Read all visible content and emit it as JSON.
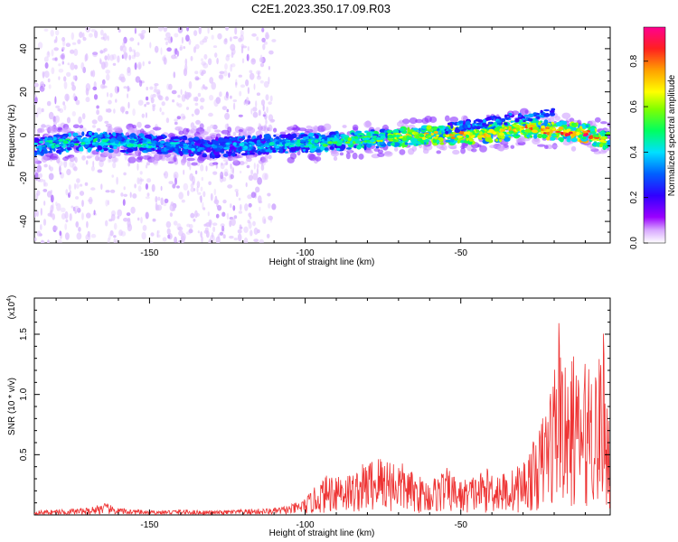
{
  "figure_title": "C2E1.2023.350.17.09.R03",
  "chart_data": [
    {
      "type": "heatmap",
      "xlabel": "Height of straight line (km)",
      "ylabel": "Frequency (Hz)",
      "xlim": [
        -187,
        -2
      ],
      "ylim": [
        -50,
        50
      ],
      "xticks": [
        -150,
        -100,
        -50
      ],
      "xtick_labels": [
        "-150",
        "-100",
        "-50"
      ],
      "yticks": [
        -40,
        -20,
        0,
        20,
        40
      ],
      "ytick_labels": [
        "-40",
        "-20",
        "0",
        "20",
        "40"
      ],
      "colorbar": {
        "label": "Normalized spectral amplitude",
        "range": [
          0,
          0.95
        ],
        "ticks": [
          0.0,
          0.2,
          0.4,
          0.6,
          0.8
        ],
        "tick_labels": [
          "0.0",
          "0.2",
          "0.4",
          "0.6",
          "0.8"
        ],
        "colormap": [
          "#ffffff",
          "#9a00ff",
          "#3000ff",
          "#0060ff",
          "#00e0ff",
          "#00ff60",
          "#80ff00",
          "#ffff00",
          "#ffa000",
          "#ff2020",
          "#ff0090"
        ]
      },
      "ridge": {
        "x": [
          -187,
          -170,
          -150,
          -140,
          -130,
          -120,
          -110,
          -100,
          -90,
          -80,
          -70,
          -60,
          -50,
          -40,
          -30,
          -20,
          -10,
          -2
        ],
        "frequency": [
          -5,
          -3,
          -4,
          -5,
          -6,
          -5,
          -4,
          -4,
          -3,
          -2,
          -1,
          0,
          0,
          1,
          3,
          2,
          1,
          -3
        ],
        "peak_amplitude": [
          0.45,
          0.5,
          0.45,
          0.4,
          0.35,
          0.4,
          0.45,
          0.5,
          0.55,
          0.6,
          0.7,
          0.8,
          0.8,
          0.75,
          0.85,
          0.9,
          0.95,
          0.7
        ]
      },
      "scatter_region_x": [
        -187,
        -110
      ]
    },
    {
      "type": "line",
      "xlabel": "Height of straight line (km)",
      "ylabel": "SNR (10 * v/v)",
      "y_scale_label": "(x10",
      "y_scale_exp": "4",
      "y_scale_close": ")",
      "xlim": [
        -187,
        -2
      ],
      "ylim": [
        0,
        18000
      ],
      "xticks": [
        -150,
        -100,
        -50
      ],
      "xtick_labels": [
        "-150",
        "-100",
        "-50"
      ],
      "yticks": [
        5000,
        10000,
        15000
      ],
      "ytick_labels": [
        "0.5",
        "1.0",
        "1.5"
      ],
      "color": "#ee3333",
      "x": [
        -187,
        -180,
        -170,
        -165,
        -160,
        -150,
        -140,
        -130,
        -120,
        -110,
        -105,
        -100,
        -95,
        -90,
        -85,
        -80,
        -75,
        -70,
        -65,
        -60,
        -55,
        -50,
        -45,
        -40,
        -35,
        -30,
        -25,
        -22,
        -20,
        -18,
        -16,
        -14,
        -12,
        -10,
        -8,
        -6,
        -4,
        -2
      ],
      "y": [
        300,
        400,
        500,
        900,
        500,
        300,
        400,
        300,
        400,
        500,
        700,
        1200,
        2500,
        3500,
        3000,
        4000,
        4500,
        4000,
        3000,
        2500,
        3500,
        2500,
        3000,
        3500,
        3000,
        4000,
        6000,
        9000,
        11000,
        16000,
        9000,
        12000,
        10000,
        11000,
        12500,
        10500,
        14000,
        6000
      ]
    }
  ]
}
